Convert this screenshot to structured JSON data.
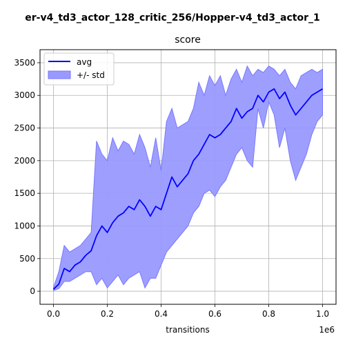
{
  "figure": {
    "suptitle": "er-v4_td3_actor_128_critic_256/Hopper-v4_td3_actor_1"
  },
  "chart_data": {
    "type": "line",
    "title": "score",
    "xlabel": "transitions",
    "ylabel": "",
    "x_offset_label": "1e6",
    "xlim": [
      -0.05,
      1.05
    ],
    "ylim": [
      -200,
      3700
    ],
    "xticks": [
      0.0,
      0.2,
      0.4,
      0.6,
      0.8,
      1.0
    ],
    "xtick_labels": [
      "0.0",
      "0.2",
      "0.4",
      "0.6",
      "0.8",
      "1.0"
    ],
    "yticks": [
      0,
      500,
      1000,
      1500,
      2000,
      2500,
      3000,
      3500
    ],
    "ytick_labels": [
      "0",
      "500",
      "1000",
      "1500",
      "2000",
      "2500",
      "3000",
      "3500"
    ],
    "grid": true,
    "legend": {
      "position": "top-left",
      "entries": [
        "avg",
        "+/- std"
      ]
    },
    "colors": {
      "avg": "#0000ff",
      "band_fill": "#9999ff",
      "band_edge": "#7777ff"
    },
    "series": [
      {
        "name": "avg",
        "x": [
          0.0,
          0.02,
          0.04,
          0.06,
          0.08,
          0.1,
          0.12,
          0.14,
          0.16,
          0.18,
          0.2,
          0.22,
          0.24,
          0.26,
          0.28,
          0.3,
          0.32,
          0.34,
          0.36,
          0.38,
          0.4,
          0.42,
          0.44,
          0.46,
          0.48,
          0.5,
          0.52,
          0.54,
          0.56,
          0.58,
          0.6,
          0.62,
          0.64,
          0.66,
          0.68,
          0.7,
          0.72,
          0.74,
          0.76,
          0.78,
          0.8,
          0.82,
          0.84,
          0.86,
          0.88,
          0.9,
          0.92,
          0.94,
          0.96,
          0.98,
          1.0
        ],
        "values": [
          30,
          110,
          350,
          300,
          400,
          450,
          550,
          620,
          850,
          1000,
          900,
          1050,
          1150,
          1200,
          1300,
          1250,
          1400,
          1300,
          1150,
          1300,
          1250,
          1500,
          1750,
          1600,
          1700,
          1800,
          2000,
          2100,
          2250,
          2400,
          2350,
          2400,
          2500,
          2600,
          2800,
          2650,
          2750,
          2800,
          3000,
          2900,
          3050,
          3100,
          2950,
          3050,
          2850,
          2700,
          2800,
          2900,
          3000,
          3050,
          3100
        ]
      },
      {
        "name": "+/- std",
        "x": [
          0.0,
          0.02,
          0.04,
          0.06,
          0.08,
          0.1,
          0.12,
          0.14,
          0.16,
          0.18,
          0.2,
          0.22,
          0.24,
          0.26,
          0.28,
          0.3,
          0.32,
          0.34,
          0.36,
          0.38,
          0.4,
          0.42,
          0.44,
          0.46,
          0.48,
          0.5,
          0.52,
          0.54,
          0.56,
          0.58,
          0.6,
          0.62,
          0.64,
          0.66,
          0.68,
          0.7,
          0.72,
          0.74,
          0.76,
          0.78,
          0.8,
          0.82,
          0.84,
          0.86,
          0.88,
          0.9,
          0.92,
          0.94,
          0.96,
          0.98,
          1.0
        ],
        "upper": [
          60,
          300,
          700,
          600,
          650,
          700,
          800,
          900,
          2300,
          2100,
          2000,
          2350,
          2150,
          2300,
          2250,
          2100,
          2400,
          2200,
          1900,
          2350,
          1850,
          2600,
          2800,
          2500,
          2550,
          2600,
          2800,
          3200,
          3000,
          3300,
          3150,
          3300,
          3000,
          3250,
          3400,
          3200,
          3450,
          3300,
          3400,
          3350,
          3450,
          3400,
          3300,
          3400,
          3200,
          3100,
          3300,
          3350,
          3400,
          3350,
          3400
        ],
        "lower": [
          10,
          40,
          150,
          150,
          200,
          250,
          300,
          300,
          100,
          200,
          50,
          150,
          250,
          100,
          200,
          250,
          300,
          50,
          200,
          200,
          400,
          600,
          700,
          800,
          900,
          1000,
          1200,
          1300,
          1500,
          1550,
          1450,
          1600,
          1700,
          1900,
          2100,
          2200,
          2000,
          1900,
          2800,
          2500,
          2900,
          2700,
          2200,
          2500,
          2000,
          1700,
          1900,
          2100,
          2400,
          2600,
          2700
        ]
      }
    ]
  }
}
